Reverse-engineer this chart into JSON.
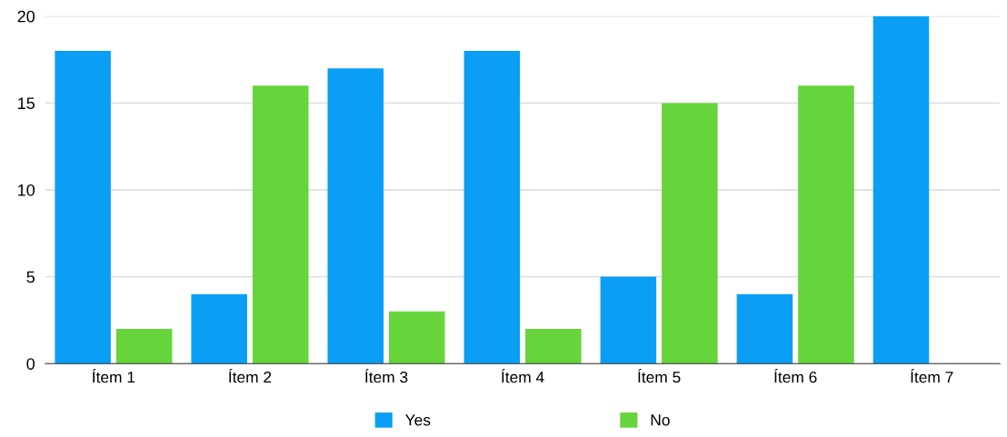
{
  "chart_data": {
    "type": "bar",
    "categories": [
      "Ítem 1",
      "Ítem 2",
      "Ítem 3",
      "Ítem 4",
      "Ítem 5",
      "Ítem 6",
      "Ítem 7"
    ],
    "series": [
      {
        "name": "Yes",
        "color": "#0a9ff5",
        "values": [
          18,
          4,
          17,
          18,
          5,
          4,
          20
        ]
      },
      {
        "name": "No",
        "color": "#66d43b",
        "values": [
          2,
          16,
          3,
          2,
          15,
          16,
          0
        ]
      }
    ],
    "ylim": [
      0,
      20
    ],
    "yticks": [
      0,
      5,
      10,
      15,
      20
    ],
    "grid": "y",
    "legend": "bottom"
  }
}
